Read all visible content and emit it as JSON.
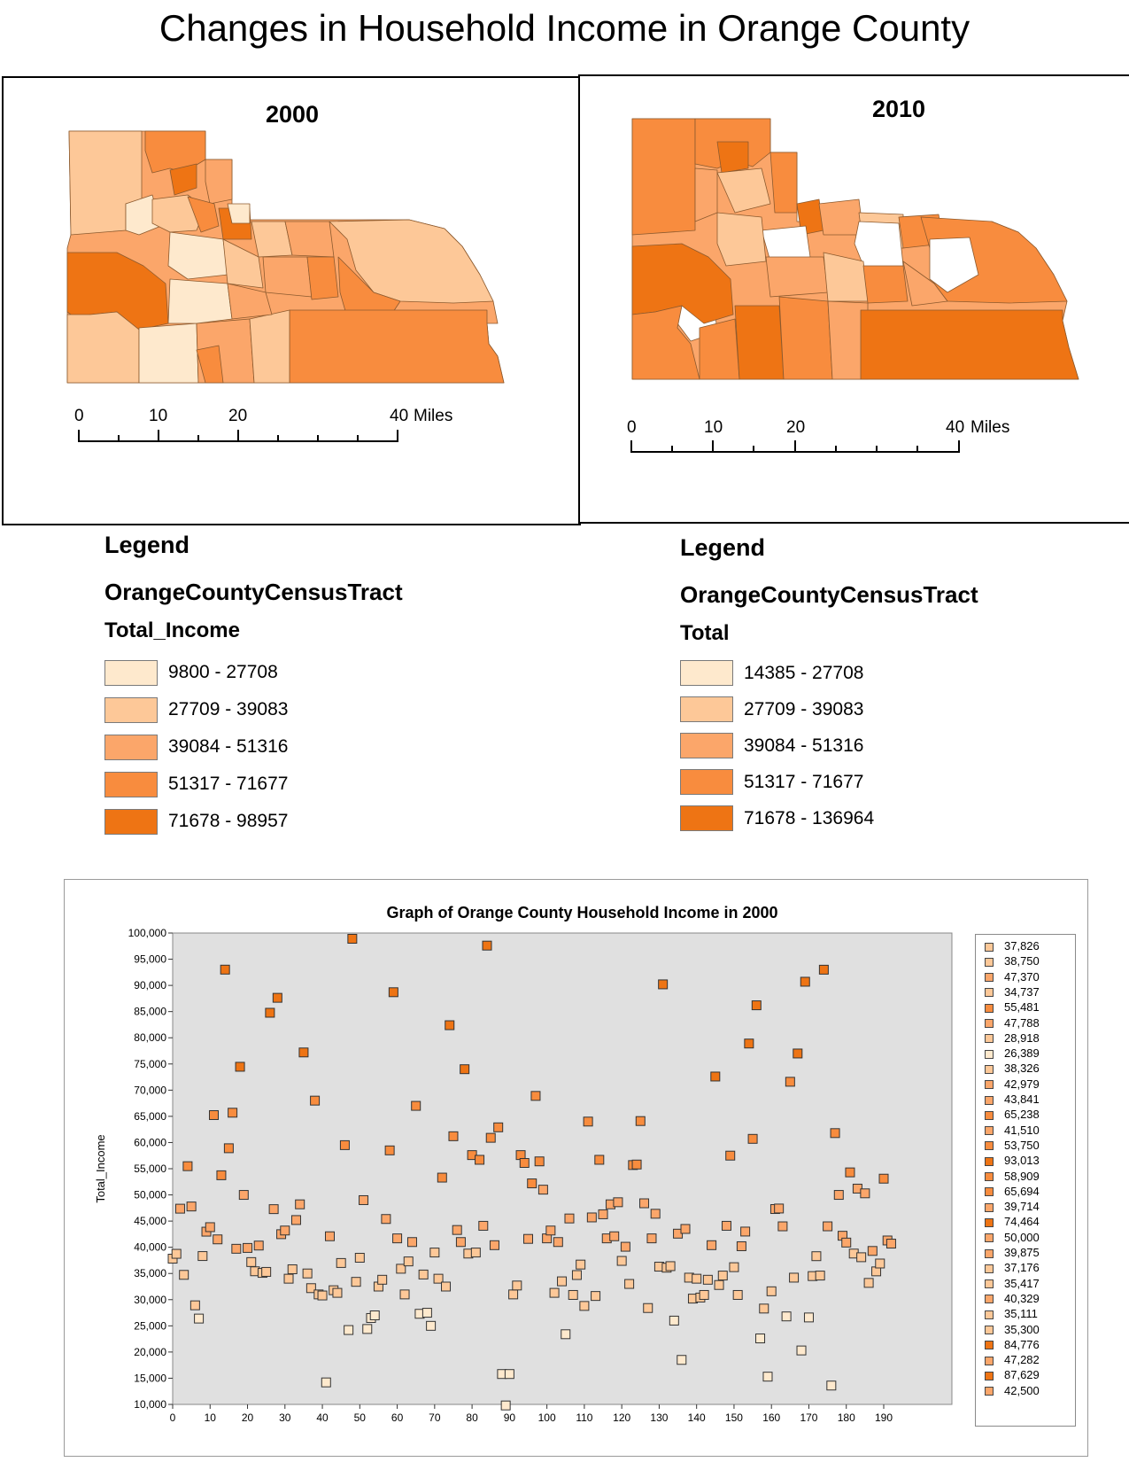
{
  "title": "Changes in Household Income in Orange County",
  "colors": {
    "class1": "#fee9cd",
    "class2": "#fdc898",
    "class3": "#fba66a",
    "class4": "#f88c3e",
    "class5": "#ee7414",
    "boundary": "#8c5a2e",
    "plot_bg": "#e0e0e0"
  },
  "map_2000": {
    "year": "2000",
    "scale": {
      "labels": [
        "0",
        "10",
        "20",
        "40"
      ],
      "unit": "Miles"
    }
  },
  "map_2010": {
    "year": "2010",
    "scale": {
      "labels": [
        "0",
        "10",
        "20",
        "40"
      ],
      "unit": "Miles"
    }
  },
  "legend_2000": {
    "heading": "Legend",
    "layer": "OrangeCountyCensusTract",
    "field": "Total_Income",
    "classes": [
      {
        "label": "9800 - 27708",
        "color": "#fee9cd"
      },
      {
        "label": "27709 - 39083",
        "color": "#fdc898"
      },
      {
        "label": "39084 - 51316",
        "color": "#fba66a"
      },
      {
        "label": "51317 - 71677",
        "color": "#f88c3e"
      },
      {
        "label": "71678 - 98957",
        "color": "#ee7414"
      }
    ]
  },
  "legend_2010": {
    "heading": "Legend",
    "layer": "OrangeCountyCensusTract",
    "field": "Total",
    "classes": [
      {
        "label": "14385 - 27708",
        "color": "#fee9cd"
      },
      {
        "label": "27709 - 39083",
        "color": "#fdc898"
      },
      {
        "label": "39084 - 51316",
        "color": "#fba66a"
      },
      {
        "label": "51317 - 71677",
        "color": "#f88c3e"
      },
      {
        "label": "71678 - 136964",
        "color": "#ee7414"
      }
    ]
  },
  "chart_data": {
    "type": "scatter",
    "title": "Graph of Orange County Household Income in 2000",
    "xlabel": "",
    "ylabel": "Total_Income",
    "xlim": [
      0,
      190
    ],
    "ylim": [
      10000,
      100000
    ],
    "xticks": [
      "0",
      "10",
      "20",
      "30",
      "40",
      "50",
      "60",
      "70",
      "80",
      "90",
      "100",
      "110",
      "120",
      "130",
      "140",
      "150",
      "160",
      "170",
      "180",
      "190"
    ],
    "yticks": [
      "10,000",
      "15,000",
      "20,000",
      "25,000",
      "30,000",
      "35,000",
      "40,000",
      "45,000",
      "50,000",
      "55,000",
      "60,000",
      "65,000",
      "70,000",
      "75,000",
      "80,000",
      "85,000",
      "90,000",
      "95,000",
      "100,000"
    ],
    "grid": false,
    "legend_position": "right",
    "legend_items": [
      "37,826",
      "38,750",
      "47,370",
      "34,737",
      "55,481",
      "47,788",
      "28,918",
      "26,389",
      "38,326",
      "42,979",
      "43,841",
      "65,238",
      "41,510",
      "53,750",
      "93,013",
      "58,909",
      "65,694",
      "39,714",
      "74,464",
      "50,000",
      "39,875",
      "37,176",
      "35,417",
      "40,329",
      "35,111",
      "35,300",
      "84,776",
      "47,282",
      "87,629",
      "42,500"
    ],
    "points": [
      [
        0,
        37826
      ],
      [
        1,
        38750
      ],
      [
        2,
        47370
      ],
      [
        3,
        34737
      ],
      [
        4,
        55481
      ],
      [
        5,
        47788
      ],
      [
        6,
        28918
      ],
      [
        7,
        26389
      ],
      [
        8,
        38326
      ],
      [
        9,
        42979
      ],
      [
        10,
        43841
      ],
      [
        11,
        65238
      ],
      [
        12,
        41510
      ],
      [
        13,
        53750
      ],
      [
        14,
        93013
      ],
      [
        15,
        58909
      ],
      [
        16,
        65694
      ],
      [
        17,
        39714
      ],
      [
        18,
        74464
      ],
      [
        19,
        50000
      ],
      [
        20,
        39875
      ],
      [
        21,
        37176
      ],
      [
        22,
        35417
      ],
      [
        23,
        40329
      ],
      [
        24,
        35111
      ],
      [
        25,
        35300
      ],
      [
        26,
        84776
      ],
      [
        27,
        47282
      ],
      [
        28,
        87629
      ],
      [
        29,
        42500
      ],
      [
        30,
        43200
      ],
      [
        31,
        34000
      ],
      [
        32,
        35800
      ],
      [
        33,
        45200
      ],
      [
        34,
        48200
      ],
      [
        35,
        77200
      ],
      [
        36,
        35000
      ],
      [
        37,
        32200
      ],
      [
        38,
        68000
      ],
      [
        39,
        31000
      ],
      [
        40,
        30800
      ],
      [
        41,
        14200
      ],
      [
        42,
        42100
      ],
      [
        43,
        31800
      ],
      [
        44,
        31300
      ],
      [
        45,
        37000
      ],
      [
        46,
        59500
      ],
      [
        47,
        24200
      ],
      [
        48,
        98900
      ],
      [
        49,
        33400
      ],
      [
        50,
        38000
      ],
      [
        51,
        49000
      ],
      [
        52,
        24400
      ],
      [
        53,
        26500
      ],
      [
        54,
        27000
      ],
      [
        55,
        32500
      ],
      [
        56,
        33800
      ],
      [
        57,
        45400
      ],
      [
        58,
        58500
      ],
      [
        59,
        88700
      ],
      [
        60,
        41700
      ],
      [
        61,
        35900
      ],
      [
        62,
        31000
      ],
      [
        63,
        37300
      ],
      [
        64,
        41000
      ],
      [
        65,
        67000
      ],
      [
        66,
        27300
      ],
      [
        67,
        34800
      ],
      [
        68,
        27500
      ],
      [
        69,
        25000
      ],
      [
        70,
        39000
      ],
      [
        71,
        34000
      ],
      [
        72,
        53300
      ],
      [
        73,
        32500
      ],
      [
        74,
        82400
      ],
      [
        75,
        61200
      ],
      [
        76,
        43300
      ],
      [
        77,
        41000
      ],
      [
        78,
        74000
      ],
      [
        79,
        38800
      ],
      [
        80,
        57600
      ],
      [
        81,
        39000
      ],
      [
        82,
        56700
      ],
      [
        83,
        44100
      ],
      [
        84,
        97600
      ],
      [
        85,
        60900
      ],
      [
        86,
        40400
      ],
      [
        87,
        62900
      ],
      [
        88,
        15800
      ],
      [
        89,
        9800
      ],
      [
        90,
        15800
      ],
      [
        91,
        31000
      ],
      [
        92,
        32700
      ],
      [
        93,
        57600
      ],
      [
        94,
        56100
      ],
      [
        95,
        41600
      ],
      [
        96,
        52200
      ],
      [
        97,
        68900
      ],
      [
        98,
        56400
      ],
      [
        99,
        51000
      ],
      [
        100,
        41700
      ],
      [
        101,
        43200
      ],
      [
        102,
        31300
      ],
      [
        103,
        41000
      ],
      [
        104,
        33500
      ],
      [
        105,
        23400
      ],
      [
        106,
        45500
      ],
      [
        107,
        30900
      ],
      [
        108,
        34700
      ],
      [
        109,
        36700
      ],
      [
        110,
        28800
      ],
      [
        111,
        64000
      ],
      [
        112,
        45700
      ],
      [
        113,
        30700
      ],
      [
        114,
        56700
      ],
      [
        115,
        46300
      ],
      [
        116,
        41700
      ],
      [
        117,
        48200
      ],
      [
        118,
        42100
      ],
      [
        119,
        48600
      ],
      [
        120,
        37400
      ],
      [
        121,
        40100
      ],
      [
        122,
        33000
      ],
      [
        123,
        55700
      ],
      [
        124,
        55800
      ],
      [
        125,
        64100
      ],
      [
        126,
        48400
      ],
      [
        127,
        28400
      ],
      [
        128,
        41700
      ],
      [
        129,
        46400
      ],
      [
        130,
        36300
      ],
      [
        131,
        90200
      ],
      [
        132,
        36100
      ],
      [
        133,
        36400
      ],
      [
        134,
        26000
      ],
      [
        135,
        42600
      ],
      [
        136,
        18500
      ],
      [
        137,
        43500
      ],
      [
        138,
        34200
      ],
      [
        139,
        30200
      ],
      [
        140,
        34000
      ],
      [
        141,
        30400
      ],
      [
        142,
        30900
      ],
      [
        143,
        33800
      ],
      [
        144,
        40400
      ],
      [
        145,
        72600
      ],
      [
        146,
        32800
      ],
      [
        147,
        34600
      ],
      [
        148,
        44100
      ],
      [
        149,
        57500
      ],
      [
        150,
        36200
      ],
      [
        151,
        30900
      ],
      [
        152,
        40200
      ],
      [
        153,
        43000
      ],
      [
        154,
        78900
      ],
      [
        155,
        60700
      ],
      [
        156,
        86200
      ],
      [
        157,
        22600
      ],
      [
        158,
        28300
      ],
      [
        159,
        15300
      ],
      [
        160,
        31600
      ],
      [
        161,
        47300
      ],
      [
        162,
        47400
      ],
      [
        163,
        44000
      ],
      [
        164,
        26800
      ],
      [
        165,
        71600
      ],
      [
        166,
        34200
      ],
      [
        167,
        77000
      ],
      [
        168,
        20300
      ],
      [
        169,
        90700
      ],
      [
        170,
        26600
      ],
      [
        171,
        34500
      ],
      [
        172,
        38300
      ],
      [
        173,
        34600
      ],
      [
        174,
        93000
      ],
      [
        175,
        44000
      ],
      [
        176,
        13600
      ],
      [
        177,
        61800
      ],
      [
        178,
        50000
      ],
      [
        179,
        42200
      ],
      [
        180,
        40900
      ],
      [
        181,
        54300
      ],
      [
        182,
        38800
      ],
      [
        183,
        51200
      ],
      [
        184,
        38100
      ],
      [
        185,
        50300
      ],
      [
        186,
        33200
      ],
      [
        187,
        39300
      ],
      [
        188,
        35400
      ],
      [
        189,
        36900
      ],
      [
        190,
        53100
      ],
      [
        191,
        41300
      ],
      [
        192,
        40700
      ]
    ]
  }
}
